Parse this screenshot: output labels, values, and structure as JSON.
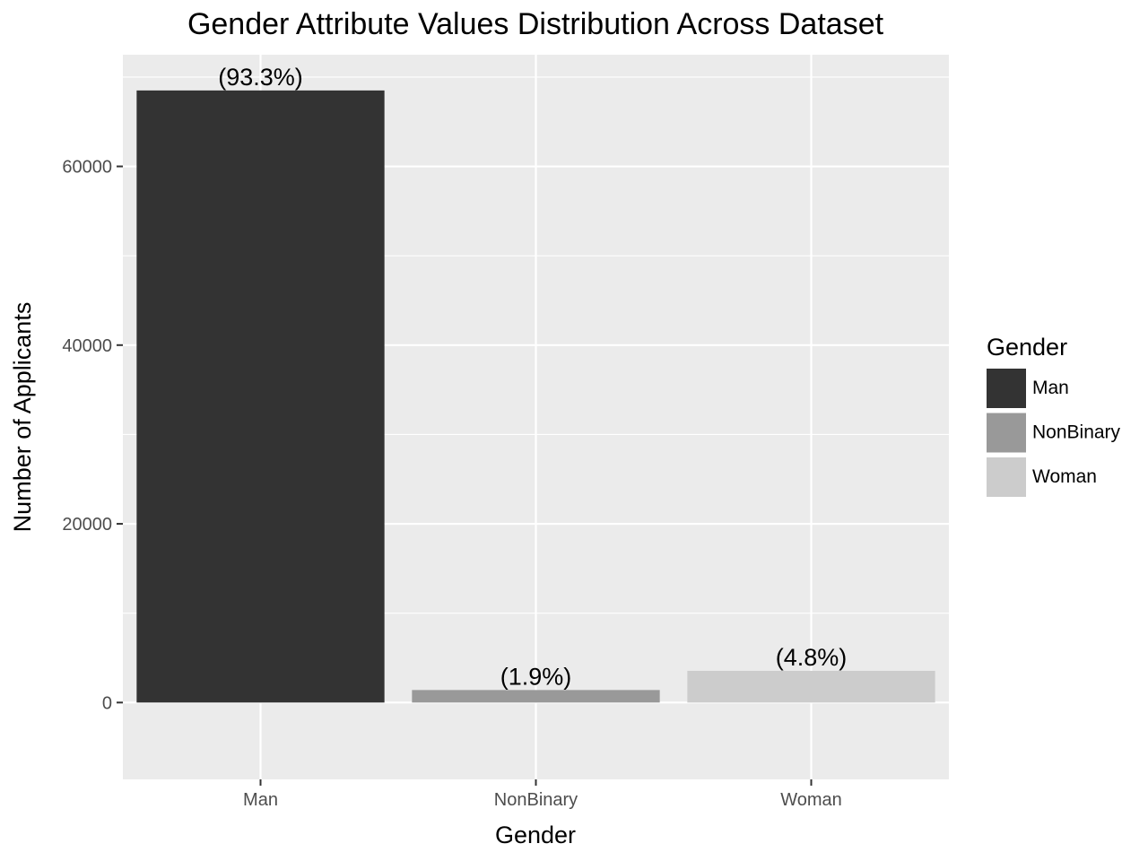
{
  "chart_data": {
    "type": "bar",
    "title": "Gender Attribute Values Distribution Across Dataset",
    "xlabel": "Gender",
    "ylabel": "Number of Applicants",
    "categories": [
      "Man",
      "NonBinary",
      "Woman"
    ],
    "values": [
      68500,
      1400,
      3550
    ],
    "labels": [
      "(93.3%)",
      "(1.9%)",
      "(4.8%)"
    ],
    "colors": [
      "#333333",
      "#999999",
      "#cccccc"
    ],
    "ylim": [
      -8600,
      72500
    ],
    "yticks": [
      0,
      20000,
      40000,
      60000
    ],
    "ytick_labels": [
      "0",
      "20000",
      "40000",
      "60000"
    ],
    "grid": true,
    "panel_background": "#ebebeb",
    "legend": {
      "title": "Gender",
      "placement": "right",
      "items": [
        "Man",
        "NonBinary",
        "Woman"
      ]
    }
  }
}
